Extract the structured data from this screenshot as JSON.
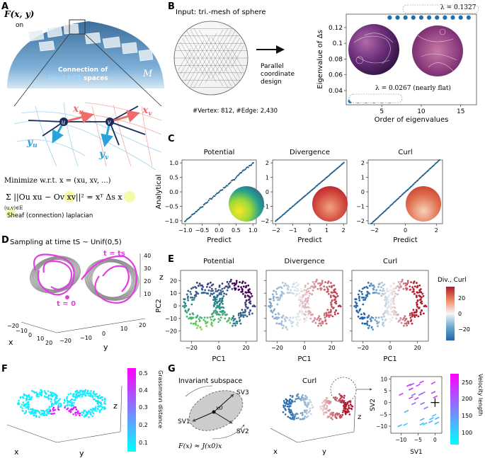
{
  "panel_letters": [
    "A",
    "B",
    "C",
    "D",
    "E",
    "F",
    "G"
  ],
  "panel_a": {
    "field_label": "F(x, y)",
    "field_sub": "on",
    "manifold": "M",
    "caption_line1": "Connection of",
    "caption_line2_a": "local PCA",
    "caption_line2_b": " spaces",
    "node_u": "u",
    "node_v": "v",
    "xu": "x",
    "xv": "x",
    "yu": "y",
    "yv": "y",
    "sub_u": "u",
    "sub_v": "v",
    "minimize": "Minimize  w.r.t. x = (xu, xv, ...)",
    "sum_formula": "Σ ||Ou xu − Ov xv||² = xᵀ Δs x",
    "sum_index": "(u,v)∈E",
    "sheaf_label": "Sheaf (connection) laplacian"
  },
  "panel_b": {
    "input_title": "Input: tri.-mesh of sphere",
    "arrow_text": [
      "Parallel",
      "coordinate",
      "design"
    ],
    "mesh_stats": "#Vertex: 812, #Edge: 2,430",
    "lambda_high": "λ = 0.1327",
    "lambda_low": "λ = 0.0267 (nearly flat)"
  },
  "panel_c": {
    "titles": [
      "Potential",
      "Divergence",
      "Curl"
    ],
    "ylabel": "Analytical",
    "xlabel": "Predict"
  },
  "panel_d": {
    "title": "Sampling at time tS ~ Unif(0,5)",
    "t_ts": "t = ts",
    "t_zero": "t = 0",
    "axis_z": "z",
    "axis_x": "x",
    "axis_y": "y",
    "z_ticks": [
      "40",
      "30",
      "20",
      "10"
    ],
    "x_ticks": [
      "−20",
      "−10",
      "0",
      "10",
      "20"
    ],
    "y_ticks": [
      "−20",
      "−10",
      "0",
      "10",
      "20"
    ]
  },
  "panel_e": {
    "titles": [
      "Potential",
      "Divergence",
      "Curl"
    ],
    "ylabel": "PC2",
    "xlabel": "PC1",
    "colorbar_title": "Div., Curl",
    "colorbar_ticks": [
      "20",
      "0",
      "−20"
    ]
  },
  "panel_f": {
    "axis_x": "x",
    "axis_y": "y",
    "axis_z": "z",
    "colorbar_label": "Grassmann distance",
    "colorbar_ticks": [
      "0.5",
      "0.4",
      "0.3",
      "0.2",
      "0.1"
    ]
  },
  "panel_g": {
    "subspace_title": "Invariant subspace",
    "sv1": "SV1",
    "sv2": "SV2",
    "sv3": "SV3",
    "x0": "x0",
    "formula": "F(x) ≈ J(x0)x",
    "curl_title": "Curl",
    "axis_x": "x",
    "axis_y": "y",
    "axis_z": "z",
    "colorbar_label": "Velocity length",
    "colorbar_ticks": [
      "250",
      "200",
      "150",
      "100"
    ]
  },
  "chart_data": [
    {
      "type": "line",
      "id": "B-eigenvalues",
      "title": "",
      "xlabel": "Order of eigenvalues",
      "ylabel": "Eigenvalue of Δs",
      "x_ticks": [
        5,
        10,
        15
      ],
      "y_ticks": [
        0.04,
        0.06,
        0.08,
        0.1,
        0.12
      ],
      "xlim": [
        0.5,
        17
      ],
      "ylim": [
        0.022,
        0.137
      ],
      "series": [
        {
          "name": "flat",
          "x": [
            1,
            2,
            3,
            4,
            5,
            6
          ],
          "y": [
            0.0267,
            0.0267,
            0.0267,
            0.0267,
            0.0267,
            0.0267
          ]
        },
        {
          "name": "high",
          "x": [
            6,
            7,
            8,
            9,
            10,
            11,
            12,
            13,
            14,
            15,
            16
          ],
          "y": [
            0.1327,
            0.1327,
            0.1327,
            0.1327,
            0.1327,
            0.1327,
            0.1327,
            0.1327,
            0.1327,
            0.1327,
            0.1327
          ]
        }
      ]
    },
    {
      "type": "scatter",
      "id": "C-potential",
      "title": "Potential",
      "xlabel": "Predict",
      "ylabel": "Analytical",
      "x_ticks": [
        -1.0,
        -0.5,
        0.0,
        0.5,
        1.0
      ],
      "y_ticks": [
        -1.0,
        -0.5,
        0.0,
        0.5,
        1.0
      ],
      "x_tick_labels": [
        "−1.0",
        "−0.5",
        "0.0",
        "0.5",
        "1.0"
      ],
      "y_tick_labels": [
        "−1.0",
        "−0.5",
        "0.0",
        "0.5",
        "1.0"
      ],
      "xlim": [
        -1.1,
        1.1
      ],
      "ylim": [
        -1.1,
        1.1
      ],
      "relation": "y ≈ x"
    },
    {
      "type": "scatter",
      "id": "C-divergence",
      "title": "Divergence",
      "xlabel": "Predict",
      "x_ticks": [
        -2,
        -1,
        0,
        1,
        2
      ],
      "y_ticks": [
        -2,
        -1,
        0,
        1,
        2
      ],
      "x_tick_labels": [
        "−2",
        "−1",
        "0",
        "1",
        "2"
      ],
      "y_tick_labels": [
        "−2",
        "−1",
        "0",
        "1",
        "2"
      ],
      "xlim": [
        -2.2,
        2.2
      ],
      "ylim": [
        -2.2,
        2.2
      ],
      "relation": "y ≈ x"
    },
    {
      "type": "scatter",
      "id": "C-curl",
      "title": "Curl",
      "xlabel": "Predict",
      "x_ticks": [
        -2,
        0,
        2
      ],
      "y_ticks": [
        -2,
        -1,
        0,
        1,
        2
      ],
      "x_tick_labels": [
        "−2",
        "0",
        "2"
      ],
      "y_tick_labels": [
        "−2",
        "−1",
        "0",
        "1",
        "2"
      ],
      "xlim": [
        -2.4,
        2.4
      ],
      "ylim": [
        -2.2,
        2.2
      ],
      "relation": "y ≈ x"
    },
    {
      "type": "scatter",
      "id": "E-embeddings",
      "titles": [
        "Potential",
        "Divergence",
        "Curl"
      ],
      "xlabel": "PC1",
      "ylabel": "PC2",
      "x_ticks": [
        -20,
        0,
        20
      ],
      "y_ticks": [
        -20,
        -10,
        0,
        10,
        20
      ],
      "x_tick_labels": [
        "−20",
        "0",
        "20"
      ],
      "y_tick_labels": [
        "−20",
        "−10",
        "0",
        "10",
        "20"
      ],
      "xlim": [
        -28,
        28
      ],
      "ylim": [
        -28,
        28
      ]
    },
    {
      "type": "scatter",
      "id": "G-subspace",
      "xlabel": "SV1",
      "ylabel": "SV2",
      "x_ticks": [
        -10,
        -5,
        0
      ],
      "y_ticks": [
        -10,
        -5,
        0,
        5,
        10
      ],
      "x_tick_labels": [
        "−10",
        "−5",
        "0"
      ],
      "y_tick_labels": [
        "−10",
        "−5",
        "0",
        "5",
        "10"
      ],
      "xlim": [
        -13,
        2
      ],
      "ylim": [
        -13,
        11
      ]
    }
  ]
}
